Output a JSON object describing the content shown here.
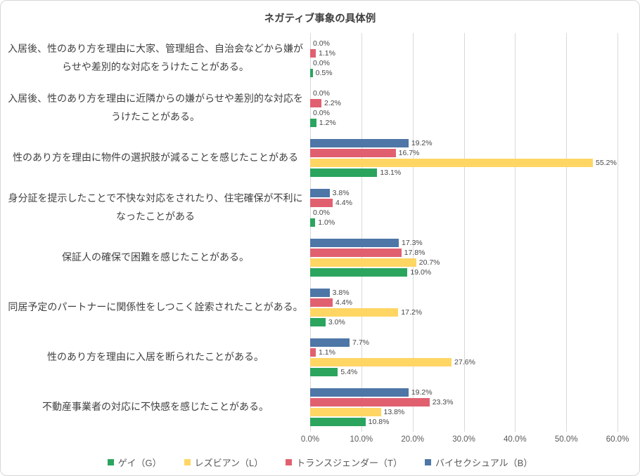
{
  "chart_data": {
    "type": "bar",
    "orientation": "horizontal",
    "title": "ネガティブ事象の具体例",
    "categories": [
      "入居後、性のあり方を理由に大家、管理組合、自治会などから嫌がらせや差別的な対応をうけたことがある。",
      "入居後、性のあり方を理由に近隣からの嫌がらせや差別的な対応をうけたことがある。",
      "性のあり方を理由に物件の選択肢が減ることを感じたことがある",
      "身分証を提示したことで不快な対応をされたり、住宅確保が不利になったことがある",
      "保証人の確保で困難を感じたことがある。",
      "同居予定のパートナーに関係性をしつこく詮索されたことがある。",
      "性のあり方を理由に入居を断られたことがある。",
      "不動産事業者の対応に不快感を感じたことがある。"
    ],
    "series": [
      {
        "name": "ゲイ（G）",
        "color": "#2BA45E",
        "values": [
          0.5,
          1.2,
          13.1,
          1.0,
          19.0,
          3.0,
          5.4,
          10.8
        ]
      },
      {
        "name": "レズビアン（L）",
        "color": "#FFD664",
        "values": [
          0.0,
          0.0,
          55.2,
          0.0,
          20.7,
          17.2,
          27.6,
          13.8
        ]
      },
      {
        "name": "トランスジェンダー（T）",
        "color": "#E16070",
        "values": [
          1.1,
          2.2,
          16.7,
          4.4,
          17.8,
          4.4,
          1.1,
          23.3
        ]
      },
      {
        "name": "バイセクシュアル（B）",
        "color": "#4E76A7",
        "values": [
          0.0,
          0.0,
          19.2,
          3.8,
          17.3,
          3.8,
          7.7,
          19.2
        ]
      }
    ],
    "bar_order_top_to_bottom": [
      "バイセクシュアル（B）",
      "トランスジェンダー（T）",
      "レズビアン（L）",
      "ゲイ（G）"
    ],
    "xlim": [
      0,
      60
    ],
    "x_ticks": [
      "0.0%",
      "10.0%",
      "20.0%",
      "30.0%",
      "40.0%",
      "50.0%",
      "60.0%"
    ],
    "value_label_suffix": "%",
    "grid": "vertical",
    "legend_position": "bottom",
    "colors": {
      "gridline": "#d9d9d9",
      "title_text": "#404040",
      "category_text": "#404040",
      "value_text": "#474747",
      "tick_text": "#595959",
      "border": "#d7d7d7"
    }
  }
}
